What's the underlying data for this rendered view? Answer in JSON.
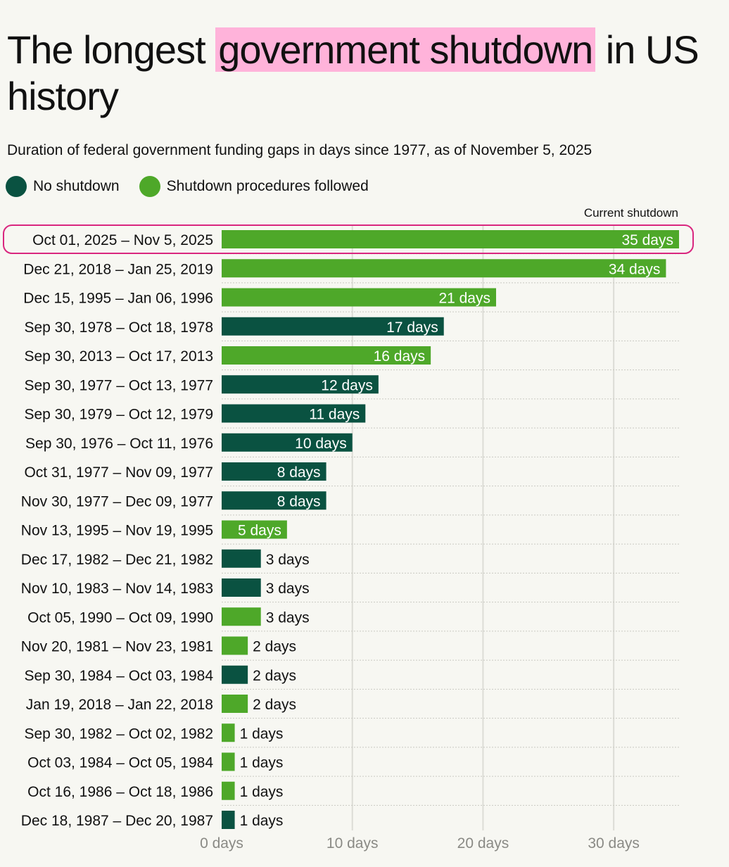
{
  "title": {
    "before": "The longest ",
    "highlight": "government shutdown",
    "after": " in US history"
  },
  "subtitle": "Duration of federal government funding gaps in days since 1977, as of November 5, 2025",
  "legend": [
    {
      "label": "No shutdown",
      "color": "#0a5241"
    },
    {
      "label": "Shutdown procedures followed",
      "color": "#4ea829"
    }
  ],
  "colors": {
    "highlight": "#ffb3da",
    "current_outline": "#d9267f",
    "no_shutdown": "#0a5241",
    "shutdown": "#4ea829"
  },
  "chart_data": {
    "type": "bar",
    "orientation": "horizontal",
    "value_suffix": " days",
    "annotation": "Current shutdown",
    "categories": [
      "Oct 01, 2025 – Nov 5, 2025",
      "Dec 21, 2018 – Jan 25, 2019",
      "Dec 15, 1995 – Jan 06, 1996",
      "Sep 30, 1978 – Oct 18, 1978",
      "Sep 30, 2013 – Oct 17, 2013",
      "Sep 30, 1977 – Oct 13, 1977",
      "Sep 30, 1979 – Oct 12, 1979",
      "Sep 30, 1976 – Oct 11, 1976",
      "Oct 31, 1977 – Nov 09, 1977",
      "Nov 30, 1977 – Dec 09, 1977",
      "Nov 13, 1995 – Nov 19, 1995",
      "Dec 17, 1982 – Dec 21, 1982",
      "Nov 10, 1983 – Nov 14, 1983",
      "Oct 05, 1990 – Oct 09, 1990",
      "Nov 20, 1981 – Nov 23, 1981",
      "Sep 30, 1984 – Oct 03, 1984",
      "Jan 19, 2018 – Jan 22, 2018",
      "Sep 30, 1982 – Oct 02, 1982",
      "Oct 03, 1984 – Oct 05, 1984",
      "Oct 16, 1986 – Oct 18, 1986",
      "Dec 18, 1987 – Dec 20, 1987"
    ],
    "values": [
      35,
      34,
      21,
      17,
      16,
      12,
      11,
      10,
      8,
      8,
      5,
      3,
      3,
      3,
      2,
      2,
      2,
      1,
      1,
      1,
      1
    ],
    "shutdown_procedures": [
      true,
      true,
      true,
      false,
      true,
      false,
      false,
      false,
      false,
      false,
      true,
      false,
      false,
      true,
      true,
      false,
      true,
      true,
      true,
      true,
      false
    ],
    "x_ticks": [
      0,
      10,
      20,
      30
    ],
    "x_tick_labels": [
      "0 days",
      "10 days",
      "20 days",
      "30 days"
    ],
    "xlim": [
      0,
      35
    ]
  }
}
